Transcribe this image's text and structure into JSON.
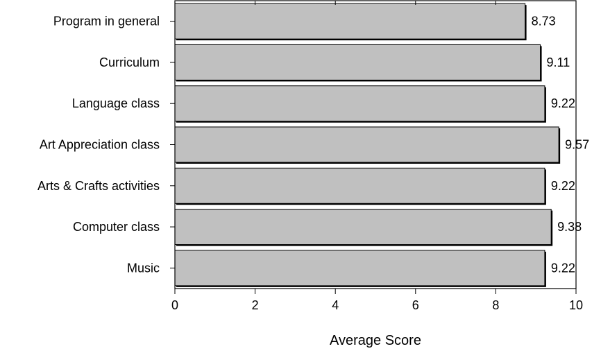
{
  "chart_data": {
    "type": "bar",
    "orientation": "horizontal",
    "categories": [
      "Program in general",
      "Curriculum",
      "Language class",
      "Art Appreciation class",
      "Arts & Crafts activities",
      "Computer class",
      "Music"
    ],
    "values": [
      8.73,
      9.11,
      9.22,
      9.57,
      9.22,
      9.38,
      9.22
    ],
    "data_labels": [
      "8.73",
      "9.11",
      "9.22",
      "9.57",
      "9.22",
      "9.38",
      "9.22"
    ],
    "xlabel": "Average Score",
    "ylabel": "",
    "title": "",
    "xlim": [
      0,
      10
    ],
    "xticks": [
      0,
      2,
      4,
      6,
      8,
      10
    ],
    "grid": false,
    "legend": "none",
    "bar_color": "#c0c0c0",
    "bar_edge_color": "#000000"
  }
}
